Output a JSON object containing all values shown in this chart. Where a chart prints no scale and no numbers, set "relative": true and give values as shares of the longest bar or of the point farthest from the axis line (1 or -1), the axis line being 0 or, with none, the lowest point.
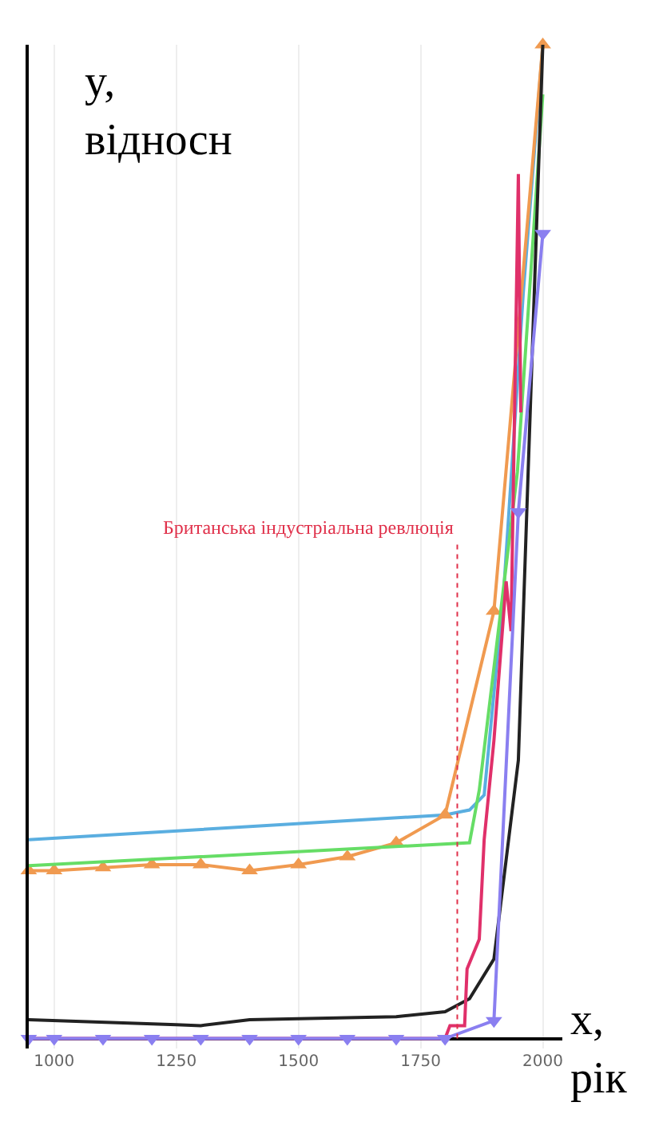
{
  "chart_data": {
    "type": "line",
    "relative": true,
    "xlabel": "x,\nрік",
    "ylabel": "y,\nвідносн",
    "xlim": [
      948,
      2040
    ],
    "xticks": [
      1000,
      1250,
      1500,
      1750,
      2000
    ],
    "grid": "x",
    "line_style": "solid",
    "ref_lines": [
      {
        "axis": "x",
        "value": 1825,
        "label": "Британська індустріальна ревлюція",
        "color": "#e0304a",
        "line_style": "dotted"
      }
    ],
    "series": [
      {
        "color": "#5aaee0",
        "marker": "none",
        "x": [
          948,
          1800,
          1850,
          1880,
          1920,
          1960,
          2000
        ],
        "values": [
          0.2,
          0.225,
          0.23,
          0.245,
          0.45,
          0.75,
          1.0
        ]
      },
      {
        "color": "#f09a50",
        "marker": "triangle",
        "x": [
          948,
          1000,
          1100,
          1200,
          1300,
          1400,
          1500,
          1600,
          1700,
          1800,
          1900,
          2000
        ],
        "values": [
          0.169,
          0.169,
          0.172,
          0.175,
          0.175,
          0.169,
          0.175,
          0.183,
          0.197,
          0.225,
          0.43,
          1.0
        ]
      },
      {
        "color": "#66dd66",
        "marker": "none",
        "x": [
          948,
          1850,
          1870,
          1948,
          2000
        ],
        "values": [
          0.174,
          0.197,
          0.25,
          0.57,
          0.95
        ]
      },
      {
        "color": "#222222",
        "marker": "none",
        "x": [
          948,
          1250,
          1300,
          1400,
          1700,
          1800,
          1850,
          1900,
          1950,
          1970,
          2000
        ],
        "values": [
          0.019,
          0.014,
          0.013,
          0.019,
          0.022,
          0.027,
          0.04,
          0.08,
          0.28,
          0.57,
          1.0
        ]
      },
      {
        "color": "#e0306a",
        "marker": "none",
        "x": [
          948,
          1800,
          1810,
          1840,
          1845,
          1870,
          1880,
          1900,
          1925,
          1935,
          1950,
          1955
        ],
        "values": [
          0.0,
          0.0,
          0.013,
          0.013,
          0.07,
          0.1,
          0.2,
          0.3,
          0.46,
          0.41,
          0.87,
          0.63
        ]
      },
      {
        "color": "#8a7ff0",
        "marker": "triangle-down",
        "x": [
          948,
          1000,
          1100,
          1200,
          1300,
          1400,
          1500,
          1600,
          1700,
          1800,
          1900,
          1950,
          2000
        ],
        "values": [
          0.0,
          0.0,
          0.0,
          0.0,
          0.0,
          0.0,
          0.0,
          0.0,
          0.0,
          0.0,
          0.018,
          0.53,
          0.81
        ]
      }
    ]
  }
}
